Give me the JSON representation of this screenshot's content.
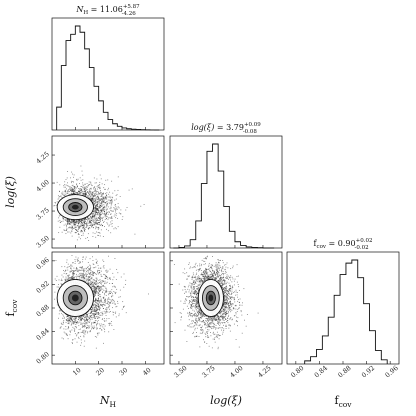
{
  "chart_data": {
    "type": "corner",
    "parameters": [
      {
        "key": "nh",
        "label": "N_H",
        "title": {
          "name": "N_H",
          "median": "11.06",
          "plus": "+5.87",
          "minus": "-4.26"
        },
        "ticks": [
          "10",
          "20",
          "30",
          "40"
        ],
        "range": [
          0,
          48
        ],
        "hist": {
          "edges": [
            2,
            4,
            6,
            8,
            10,
            12,
            14,
            16,
            18,
            20,
            22,
            24,
            26,
            28,
            30,
            32,
            34,
            36,
            38,
            40,
            42,
            44,
            46
          ],
          "counts": [
            0.22,
            0.62,
            0.86,
            0.92,
            1.0,
            0.94,
            0.78,
            0.6,
            0.42,
            0.28,
            0.17,
            0.1,
            0.06,
            0.035,
            0.02,
            0.012,
            0.008,
            0.005,
            0.003,
            0.002,
            0.001,
            0.0
          ]
        }
      },
      {
        "key": "logxi",
        "label": "log(ξ)",
        "title": {
          "name": "log(ξ)",
          "median": "3.79",
          "plus": "+0.09",
          "minus": "-0.08"
        },
        "ticks": [
          "3.50",
          "3.75",
          "4.00",
          "4.25"
        ],
        "range": [
          3.42,
          4.42
        ],
        "hist": {
          "edges": [
            3.45,
            3.5,
            3.55,
            3.6,
            3.65,
            3.7,
            3.75,
            3.8,
            3.85,
            3.9,
            3.95,
            4.0,
            4.05,
            4.1,
            4.15,
            4.2,
            4.25,
            4.3,
            4.35
          ],
          "counts": [
            0.0,
            0.005,
            0.02,
            0.08,
            0.26,
            0.62,
            0.93,
            1.0,
            0.74,
            0.4,
            0.16,
            0.06,
            0.025,
            0.01,
            0.005,
            0.003,
            0.0,
            0.0
          ]
        }
      },
      {
        "key": "fcov",
        "label": "f_cov",
        "title": {
          "name": "f_cov",
          "median": "0.90",
          "plus": "+0.02",
          "minus": "-0.02"
        },
        "ticks": [
          "0.80",
          "0.84",
          "0.88",
          "0.92",
          "0.96"
        ],
        "range": [
          0.785,
          0.975
        ],
        "hist": {
          "edges": [
            0.815,
            0.825,
            0.835,
            0.845,
            0.855,
            0.865,
            0.875,
            0.885,
            0.895,
            0.905,
            0.915,
            0.925,
            0.935,
            0.945,
            0.955
          ],
          "counts": [
            0.03,
            0.07,
            0.14,
            0.27,
            0.45,
            0.66,
            0.86,
            0.97,
            1.0,
            0.83,
            0.58,
            0.32,
            0.13,
            0.04
          ]
        }
      }
    ],
    "pairs": [
      {
        "x": "nh",
        "y": "logxi",
        "center": [
          10.0,
          3.785
        ],
        "sigma": [
          5.2,
          0.075
        ],
        "scatter_extent": [
          0.5,
          45,
          3.45,
          4.38
        ]
      },
      {
        "x": "nh",
        "y": "fcov",
        "center": [
          10.0,
          0.897
        ],
        "sigma": [
          5.2,
          0.021
        ],
        "scatter_extent": [
          0.5,
          45,
          0.8,
          0.97
        ]
      },
      {
        "x": "logxi",
        "y": "fcov",
        "center": [
          3.785,
          0.897
        ],
        "sigma": [
          0.075,
          0.021
        ],
        "scatter_extent": [
          3.45,
          4.3,
          0.8,
          0.97
        ]
      }
    ]
  }
}
